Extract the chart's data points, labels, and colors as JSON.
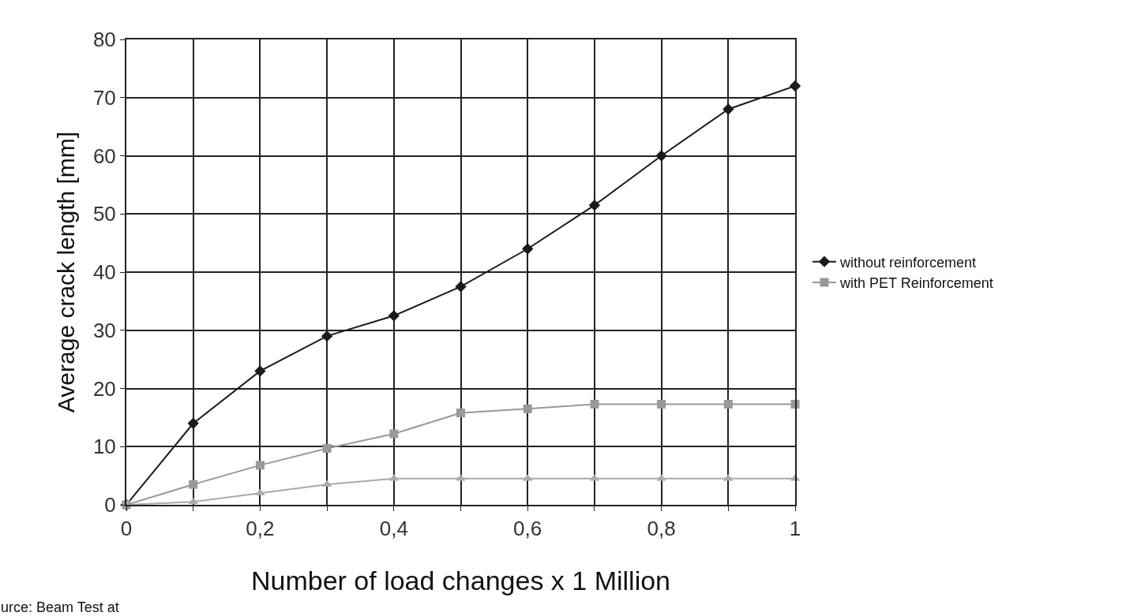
{
  "chart_data": {
    "type": "line",
    "xlabel": "Number of load changes x 1 Million",
    "ylabel": "Average crack length [mm]",
    "x": [
      0,
      0.1,
      0.2,
      0.3,
      0.4,
      0.5,
      0.6,
      0.7,
      0.8,
      0.9,
      1
    ],
    "series": [
      {
        "name": "without reinforcement",
        "color": "#1a1a1a",
        "marker": "diamond",
        "values": [
          0,
          14,
          23,
          29,
          32.5,
          37.5,
          44,
          51.5,
          60,
          68,
          72
        ]
      },
      {
        "name": "with PET Reinforcement",
        "color": "#999999",
        "marker": "square",
        "values": [
          0,
          3.5,
          6.8,
          9.7,
          12.2,
          15.8,
          16.5,
          17.3,
          17.3,
          17.3,
          17.3
        ]
      },
      {
        "color": "#aaaaaa",
        "marker": "triangle",
        "values": [
          0,
          0.5,
          2,
          3.5,
          4.5,
          4.5,
          4.5,
          4.5,
          4.5,
          4.5,
          4.5
        ]
      }
    ],
    "xlim": [
      0,
      1
    ],
    "xticks": [
      {
        "value": 0,
        "label": "0"
      },
      {
        "value": 0.1,
        "label": null
      },
      {
        "value": 0.2,
        "label": "0,2"
      },
      {
        "value": 0.3,
        "label": null
      },
      {
        "value": 0.4,
        "label": "0,4"
      },
      {
        "value": 0.5,
        "label": null
      },
      {
        "value": 0.6,
        "label": "0,6"
      },
      {
        "value": 0.7,
        "label": null
      },
      {
        "value": 0.8,
        "label": "0,8"
      },
      {
        "value": 0.9,
        "label": null
      },
      {
        "value": 1,
        "label": "1"
      }
    ],
    "ylim": [
      0,
      80
    ],
    "yticks": [
      0,
      10,
      20,
      30,
      40,
      50,
      60,
      70,
      80
    ],
    "grid": true,
    "legend": "right",
    "line_style": "solid",
    "annotations": [
      "urce: Beam Test at"
    ]
  }
}
